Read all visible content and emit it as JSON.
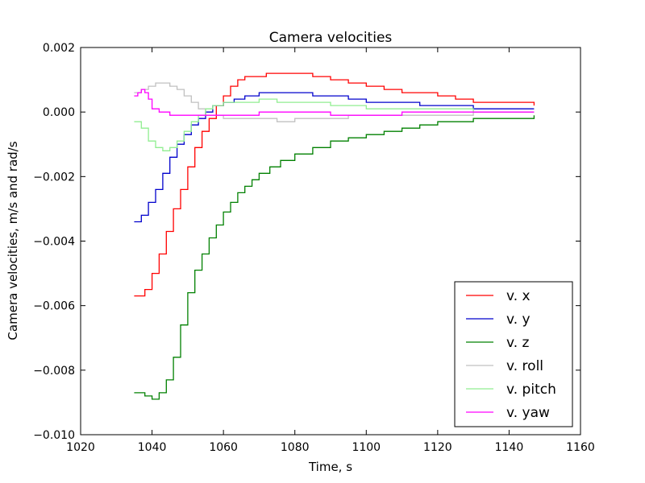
{
  "chart_data": {
    "type": "line",
    "step": true,
    "title": "Camera velocities",
    "xlabel": "Time, s",
    "ylabel": "Camera velocities, m/s and rad/s",
    "xlim": [
      1020,
      1160
    ],
    "ylim": [
      -0.01,
      0.002
    ],
    "xticks": [
      1020,
      1040,
      1060,
      1080,
      1100,
      1120,
      1140,
      1160
    ],
    "yticks": [
      -0.01,
      -0.008,
      -0.006,
      -0.004,
      -0.002,
      0.0,
      0.002
    ],
    "xtick_labels": [
      "1020",
      "1040",
      "1060",
      "1080",
      "1100",
      "1120",
      "1140",
      "1160"
    ],
    "ytick_labels": [
      "−0.010",
      "−0.008",
      "−0.006",
      "−0.004",
      "−0.002",
      "0.000",
      "0.002"
    ],
    "grid": false,
    "legend_position": "lower-right",
    "series": [
      {
        "name": "v. x",
        "color": "#ff0000",
        "x": [
          1035,
          1038,
          1040,
          1042,
          1044,
          1046,
          1048,
          1050,
          1052,
          1054,
          1056,
          1058,
          1060,
          1062,
          1064,
          1066,
          1068,
          1070,
          1072,
          1075,
          1078,
          1080,
          1085,
          1090,
          1095,
          1100,
          1105,
          1110,
          1115,
          1120,
          1125,
          1130,
          1135,
          1140,
          1147
        ],
        "y": [
          -0.0057,
          -0.0055,
          -0.005,
          -0.0044,
          -0.0037,
          -0.003,
          -0.0024,
          -0.0017,
          -0.0011,
          -0.0006,
          -0.0002,
          0.0002,
          0.0005,
          0.0008,
          0.001,
          0.0011,
          0.0011,
          0.0011,
          0.0012,
          0.0012,
          0.0012,
          0.0012,
          0.0011,
          0.001,
          0.0009,
          0.0008,
          0.0007,
          0.0006,
          0.0006,
          0.0005,
          0.0004,
          0.0003,
          0.0003,
          0.0003,
          0.0002
        ]
      },
      {
        "name": "v. y",
        "color": "#0000cc",
        "x": [
          1035,
          1037,
          1039,
          1041,
          1043,
          1045,
          1047,
          1049,
          1051,
          1053,
          1055,
          1057,
          1060,
          1063,
          1066,
          1070,
          1075,
          1080,
          1085,
          1090,
          1095,
          1100,
          1105,
          1110,
          1115,
          1120,
          1125,
          1130,
          1135,
          1140,
          1147
        ],
        "y": [
          -0.0034,
          -0.0032,
          -0.0028,
          -0.0024,
          -0.0019,
          -0.0014,
          -0.001,
          -0.0007,
          -0.0004,
          -0.0002,
          0.0,
          0.0002,
          0.0003,
          0.0004,
          0.0005,
          0.0006,
          0.0006,
          0.0006,
          0.0005,
          0.0005,
          0.0004,
          0.0003,
          0.0003,
          0.0003,
          0.0002,
          0.0002,
          0.0002,
          0.0001,
          0.0001,
          0.0001,
          0.0001
        ]
      },
      {
        "name": "v. z",
        "color": "#008000",
        "x": [
          1035,
          1038,
          1040,
          1042,
          1044,
          1046,
          1048,
          1050,
          1052,
          1054,
          1056,
          1058,
          1060,
          1062,
          1064,
          1066,
          1068,
          1070,
          1073,
          1076,
          1080,
          1085,
          1090,
          1095,
          1100,
          1105,
          1110,
          1115,
          1120,
          1125,
          1130,
          1135,
          1140,
          1147
        ],
        "y": [
          -0.0087,
          -0.0088,
          -0.0089,
          -0.0087,
          -0.0083,
          -0.0076,
          -0.0066,
          -0.0056,
          -0.0049,
          -0.0044,
          -0.0039,
          -0.0035,
          -0.0031,
          -0.0028,
          -0.0025,
          -0.0023,
          -0.0021,
          -0.0019,
          -0.0017,
          -0.0015,
          -0.0013,
          -0.0011,
          -0.0009,
          -0.0008,
          -0.0007,
          -0.0006,
          -0.0005,
          -0.0004,
          -0.0003,
          -0.0003,
          -0.0002,
          -0.0002,
          -0.0002,
          -0.0001
        ]
      },
      {
        "name": "v. roll",
        "color": "#c0c0c0",
        "x": [
          1035,
          1037,
          1039,
          1041,
          1043,
          1045,
          1047,
          1049,
          1051,
          1053,
          1055,
          1057,
          1060,
          1065,
          1070,
          1075,
          1080,
          1085,
          1090,
          1095,
          1100,
          1110,
          1120,
          1130,
          1140,
          1147
        ],
        "y": [
          0.0006,
          0.0007,
          0.0008,
          0.0009,
          0.0009,
          0.0008,
          0.0007,
          0.0005,
          0.0003,
          0.0001,
          -0.0001,
          -0.0001,
          -0.0002,
          -0.0002,
          -0.0002,
          -0.0003,
          -0.0002,
          -0.0002,
          -0.0002,
          -0.0001,
          -0.0001,
          -0.0001,
          -0.0001,
          0.0,
          0.0,
          0.0
        ]
      },
      {
        "name": "v. pitch",
        "color": "#90ee90",
        "x": [
          1035,
          1037,
          1039,
          1041,
          1043,
          1045,
          1047,
          1049,
          1051,
          1053,
          1055,
          1057,
          1060,
          1065,
          1070,
          1075,
          1080,
          1090,
          1100,
          1110,
          1120,
          1130,
          1140,
          1147
        ],
        "y": [
          -0.0003,
          -0.0005,
          -0.0009,
          -0.0011,
          -0.0012,
          -0.0011,
          -0.0009,
          -0.0006,
          -0.0003,
          -0.0001,
          0.0001,
          0.0002,
          0.0003,
          0.0003,
          0.0004,
          0.0003,
          0.0003,
          0.0002,
          0.0001,
          0.0001,
          0.0001,
          0.0,
          0.0,
          0.0
        ]
      },
      {
        "name": "v. yaw",
        "color": "#ff00ff",
        "x": [
          1035,
          1036,
          1037,
          1038,
          1039,
          1040,
          1042,
          1045,
          1050,
          1055,
          1060,
          1070,
          1080,
          1090,
          1100,
          1110,
          1120,
          1130,
          1140,
          1147
        ],
        "y": [
          0.0005,
          0.0006,
          0.0007,
          0.0006,
          0.0004,
          0.0001,
          0.0,
          -0.0001,
          -0.0001,
          -0.0001,
          -0.0001,
          0.0,
          0.0,
          -0.0001,
          -0.0001,
          0.0,
          0.0,
          0.0,
          0.0,
          0.0
        ]
      }
    ]
  }
}
